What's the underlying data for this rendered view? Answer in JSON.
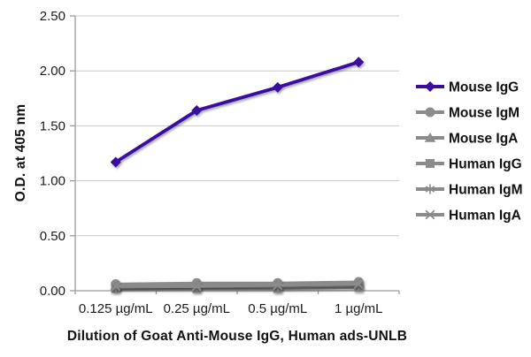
{
  "chart_data": {
    "type": "line",
    "title": "",
    "xlabel": "Dilution of Goat Anti-Mouse IgG, Human ads-UNLB",
    "ylabel": "O.D. at 405 nm",
    "categories": [
      "0.125 µg/mL",
      "0.25 µg/mL",
      "0.5 µg/mL",
      "1 µg/mL"
    ],
    "ylim": [
      0,
      2.5
    ],
    "yticks": [
      0,
      0.5,
      1,
      1.5,
      2,
      2.5
    ],
    "ytick_labels": [
      "0.00",
      "0.50",
      "1.00",
      "1.50",
      "2.00",
      "2.50"
    ],
    "grid": true,
    "legend_position": "right",
    "series": [
      {
        "name": "Mouse IgG",
        "marker": "diamond",
        "color": "#3A0B9E",
        "values": [
          1.17,
          1.64,
          1.85,
          2.08
        ]
      },
      {
        "name": "Mouse IgM",
        "marker": "circle",
        "color": "#8B8B8B",
        "values": [
          0.06,
          0.07,
          0.07,
          0.08
        ]
      },
      {
        "name": "Mouse IgA",
        "marker": "triangle",
        "color": "#8B8B8B",
        "values": [
          0.05,
          0.06,
          0.06,
          0.07
        ]
      },
      {
        "name": "Human IgG",
        "marker": "square",
        "color": "#8B8B8B",
        "values": [
          0.02,
          0.02,
          0.02,
          0.03
        ]
      },
      {
        "name": "Human IgM",
        "marker": "asterisk",
        "color": "#8B8B8B",
        "values": [
          0.03,
          0.04,
          0.04,
          0.05
        ]
      },
      {
        "name": "Human IgA",
        "marker": "x-cross",
        "color": "#8B8B8B",
        "values": [
          0.04,
          0.04,
          0.05,
          0.06
        ]
      }
    ],
    "style": {
      "background": "#FFFFFF",
      "grid_color": "#C8C8C8",
      "axis_color": "#9B9B9B",
      "text_color": "#1A1A1A",
      "accent_purple": "#3A0B9E",
      "series_gray": "#8B8B8B"
    }
  }
}
